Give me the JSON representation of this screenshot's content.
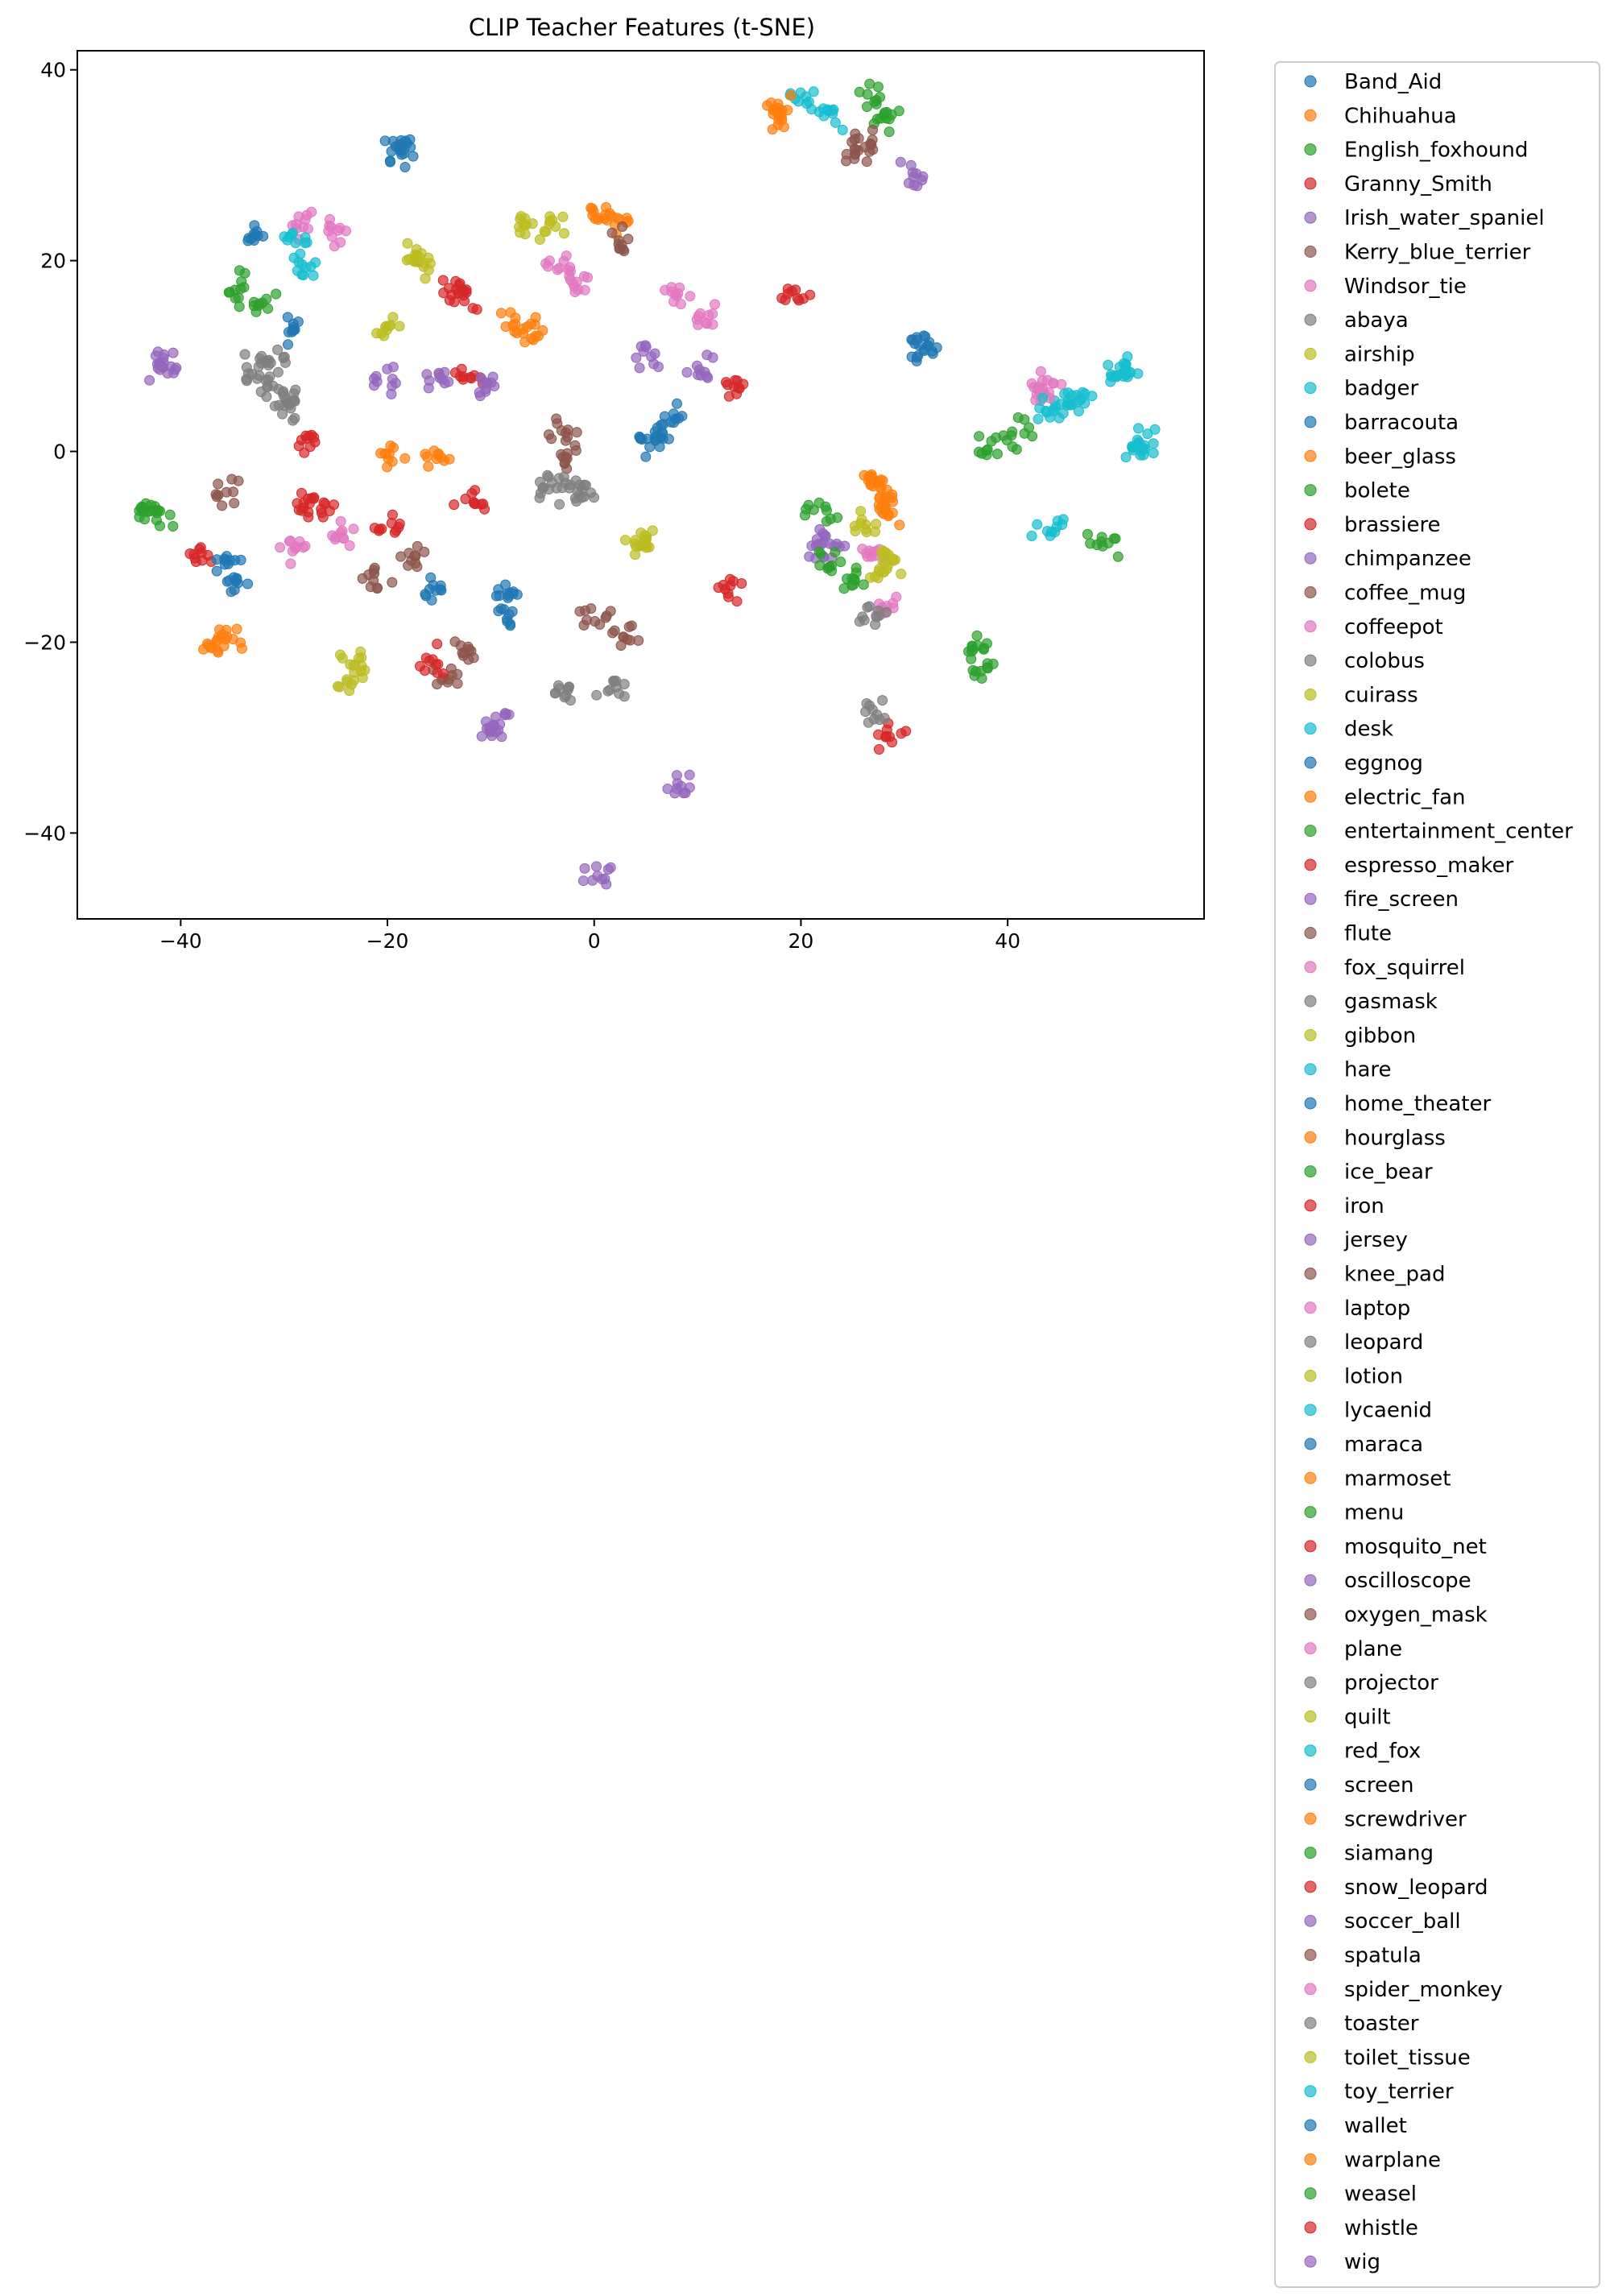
{
  "chart_data": {
    "type": "scatter",
    "title": "CLIP Teacher Features (t-SNE)",
    "xlabel": "",
    "ylabel": "",
    "xlim": [
      -50,
      59
    ],
    "ylim": [
      -49,
      42
    ],
    "xticks": [
      -40,
      -20,
      0,
      20,
      40
    ],
    "yticks": [
      -40,
      -20,
      0,
      20,
      40
    ],
    "xtick_labels": [
      "−40",
      "−20",
      "0",
      "20",
      "40"
    ],
    "ytick_labels": [
      "−40",
      "−20",
      "0",
      "20",
      "40"
    ],
    "grid": false,
    "legend_position": "outside-right",
    "palette": [
      "#1f77b4",
      "#ff7f0e",
      "#2ca02c",
      "#d62728",
      "#9467bd",
      "#8c564b",
      "#e377c2",
      "#7f7f7f",
      "#bcbd22",
      "#17becf"
    ],
    "series": [
      {
        "name": "Band_Aid",
        "clusters": [
          [
            -33,
            22.5
          ],
          [
            -29,
            12.5
          ]
        ]
      },
      {
        "name": "Chihuahua",
        "clusters": [
          [
            18,
            35
          ],
          [
            -37,
            -20.5
          ]
        ]
      },
      {
        "name": "English_foxhound",
        "clusters": [
          [
            27,
            37
          ],
          [
            -35,
            17.5
          ]
        ]
      },
      {
        "name": "Granny_Smith",
        "clusters": [
          [
            -13,
            17
          ],
          [
            19,
            16.5
          ]
        ]
      },
      {
        "name": "Irish_water_spaniel",
        "clusters": [
          [
            31,
            29
          ],
          [
            -9.5,
            -30
          ]
        ]
      },
      {
        "name": "Kerry_blue_terrier",
        "clusters": [
          [
            25,
            31
          ],
          [
            -36,
            -4
          ]
        ]
      },
      {
        "name": "Windsor_tie",
        "clusters": [
          [
            -28,
            24
          ],
          [
            -25,
            23.5
          ]
        ]
      },
      {
        "name": "abaya",
        "clusters": [
          [
            -33,
            9
          ],
          [
            -32,
            7
          ]
        ]
      },
      {
        "name": "airship",
        "clusters": [
          [
            -7,
            24
          ],
          [
            -4,
            23.5
          ]
        ]
      },
      {
        "name": "badger",
        "clusters": [
          [
            20,
            37
          ],
          [
            23,
            35.5
          ]
        ]
      },
      {
        "name": "barracouta",
        "clusters": [
          [
            -19,
            31.5
          ],
          [
            31.5,
            10.5
          ]
        ]
      },
      {
        "name": "beer_glass",
        "clusters": [
          [
            0.5,
            25
          ],
          [
            2,
            24
          ]
        ]
      },
      {
        "name": "bolete",
        "clusters": [
          [
            -32.5,
            15.5
          ],
          [
            28.5,
            35
          ]
        ]
      },
      {
        "name": "brassiere",
        "clusters": [
          [
            -12.5,
            16
          ],
          [
            -12,
            8
          ]
        ]
      },
      {
        "name": "chimpanzee",
        "clusters": [
          [
            -42,
            9.5
          ],
          [
            -20,
            7.5
          ]
        ]
      },
      {
        "name": "coffee_mug",
        "clusters": [
          [
            2,
            22
          ],
          [
            26.5,
            32.5
          ]
        ]
      },
      {
        "name": "coffeepot",
        "clusters": [
          [
            -3,
            19
          ],
          [
            -1.5,
            18
          ]
        ]
      },
      {
        "name": "colobus",
        "clusters": [
          [
            -31,
            9.5
          ],
          [
            -30,
            5
          ]
        ]
      },
      {
        "name": "cuirass",
        "clusters": [
          [
            -17,
            20
          ],
          [
            -20,
            13
          ]
        ]
      },
      {
        "name": "desk",
        "clusters": [
          [
            -28,
            19
          ],
          [
            -29,
            22
          ]
        ]
      },
      {
        "name": "eggnog",
        "clusters": [
          [
            5,
            0.5
          ],
          [
            7.5,
            3.5
          ]
        ]
      },
      {
        "name": "electric_fan",
        "clusters": [
          [
            -8,
            13
          ],
          [
            -6,
            12.5
          ]
        ]
      },
      {
        "name": "entertainment_center",
        "clusters": [
          [
            -43.5,
            -6
          ],
          [
            -42.5,
            -7
          ]
        ]
      },
      {
        "name": "espresso_maker",
        "clusters": [
          [
            -28,
            1
          ],
          [
            -38,
            -10.5
          ]
        ]
      },
      {
        "name": "fire_screen",
        "clusters": [
          [
            -15,
            7.5
          ],
          [
            5,
            10
          ]
        ]
      },
      {
        "name": "flute",
        "clusters": [
          [
            -3,
            2
          ],
          [
            -2.5,
            -0.5
          ]
        ]
      },
      {
        "name": "fox_squirrel",
        "clusters": [
          [
            8,
            16.5
          ],
          [
            11,
            14
          ]
        ]
      },
      {
        "name": "gasmask",
        "clusters": [
          [
            -4.5,
            -4
          ],
          [
            -1,
            -4.5
          ]
        ]
      },
      {
        "name": "gibbon",
        "clusters": [
          [
            -23.5,
            -22
          ],
          [
            -23.5,
            -24
          ]
        ]
      },
      {
        "name": "hare",
        "clusters": [
          [
            44,
            -8
          ],
          [
            51.5,
            8.5
          ]
        ]
      },
      {
        "name": "home_theater",
        "clusters": [
          [
            -15.5,
            -15
          ],
          [
            -8,
            -15
          ]
        ]
      },
      {
        "name": "hourglass",
        "clusters": [
          [
            -20,
            0
          ],
          [
            -15,
            -0.5
          ]
        ]
      },
      {
        "name": "ice_bear",
        "clusters": [
          [
            38.5,
            0.5
          ],
          [
            41,
            2
          ]
        ]
      },
      {
        "name": "iron",
        "clusters": [
          [
            -20,
            -8
          ],
          [
            -12,
            -5
          ]
        ]
      },
      {
        "name": "jersey",
        "clusters": [
          [
            10.5,
            9
          ],
          [
            22.5,
            -9.5
          ]
        ]
      },
      {
        "name": "knee_pad",
        "clusters": [
          [
            -17.5,
            -11
          ],
          [
            -21,
            -13
          ]
        ]
      },
      {
        "name": "laptop",
        "clusters": [
          [
            -29,
            -10
          ],
          [
            -24.5,
            -8.5
          ]
        ]
      },
      {
        "name": "leopard",
        "clusters": [
          [
            -3,
            -25
          ],
          [
            2,
            -25
          ]
        ]
      },
      {
        "name": "lotion",
        "clusters": [
          [
            4.5,
            -10
          ],
          [
            26,
            -7.5
          ]
        ]
      },
      {
        "name": "lycaenid",
        "clusters": [
          [
            46,
            5
          ],
          [
            52.5,
            1.5
          ]
        ]
      },
      {
        "name": "maraca",
        "clusters": [
          [
            -35.5,
            -11.5
          ],
          [
            -35,
            -14
          ]
        ]
      },
      {
        "name": "marmoset",
        "clusters": [
          [
            -35,
            -19.5
          ],
          [
            28,
            -5
          ]
        ]
      },
      {
        "name": "menu",
        "clusters": [
          [
            37.5,
            -22.5
          ],
          [
            49.5,
            -10
          ]
        ]
      },
      {
        "name": "mosquito_net",
        "clusters": [
          [
            -28,
            -5.5
          ],
          [
            -26.5,
            -6
          ]
        ]
      },
      {
        "name": "oscilloscope",
        "clusters": [
          [
            -9,
            -28
          ],
          [
            8.5,
            -35.5
          ]
        ]
      },
      {
        "name": "oxygen_mask",
        "clusters": [
          [
            -14.5,
            -23.5
          ],
          [
            -12,
            -21
          ]
        ]
      },
      {
        "name": "plane",
        "clusters": [
          [
            44,
            7.5
          ],
          [
            43,
            6
          ]
        ]
      },
      {
        "name": "projector",
        "clusters": [
          [
            -29.5,
            5.5
          ],
          [
            -2.5,
            -4
          ]
        ]
      },
      {
        "name": "quilt",
        "clusters": [
          [
            -17,
            19.5
          ],
          [
            28,
            -13
          ]
        ]
      },
      {
        "name": "red_fox",
        "clusters": [
          [
            44,
            4.5
          ],
          [
            47,
            5.5
          ]
        ]
      },
      {
        "name": "screen",
        "clusters": [
          [
            -8.5,
            -17
          ],
          [
            6.5,
            2
          ]
        ]
      },
      {
        "name": "screwdriver",
        "clusters": [
          [
            27,
            -4
          ],
          [
            28.5,
            -6.5
          ]
        ]
      },
      {
        "name": "siamang",
        "clusters": [
          [
            22,
            -6
          ],
          [
            25,
            -13.5
          ]
        ]
      },
      {
        "name": "snow_leopard",
        "clusters": [
          [
            13,
            -14.5
          ],
          [
            28.5,
            -30
          ]
        ]
      },
      {
        "name": "soccer_ball",
        "clusters": [
          [
            22,
            -10
          ],
          [
            -10,
            7.5
          ]
        ]
      },
      {
        "name": "spatula",
        "clusters": [
          [
            0,
            -17
          ],
          [
            2.5,
            -19
          ]
        ]
      },
      {
        "name": "spider_monkey",
        "clusters": [
          [
            28,
            -16
          ],
          [
            27,
            -10
          ]
        ]
      },
      {
        "name": "toaster",
        "clusters": [
          [
            27,
            -27
          ],
          [
            26.5,
            -17
          ]
        ]
      },
      {
        "name": "toilet_tissue",
        "clusters": [
          [
            5,
            -9.5
          ],
          [
            28.5,
            -11.5
          ]
        ]
      },
      {
        "name": "toy_terrier",
        "clusters": [
          [
            51,
            8
          ],
          [
            53,
            0.5
          ]
        ]
      },
      {
        "name": "wallet",
        "clusters": [
          [
            -18.5,
            32
          ],
          [
            32,
            11
          ]
        ]
      },
      {
        "name": "warplane",
        "clusters": [
          [
            27.5,
            -3.5
          ],
          [
            17.5,
            36
          ]
        ]
      },
      {
        "name": "weasel",
        "clusters": [
          [
            37,
            -21
          ],
          [
            22.5,
            -11.5
          ]
        ]
      },
      {
        "name": "whistle",
        "clusters": [
          [
            13.5,
            6.5
          ],
          [
            -16,
            -22
          ]
        ]
      },
      {
        "name": "wig",
        "clusters": [
          [
            0,
            -44.5
          ],
          [
            -42,
            9
          ]
        ]
      }
    ]
  }
}
